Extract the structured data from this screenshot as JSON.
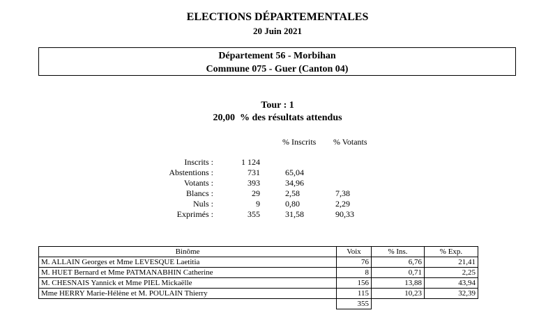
{
  "title": "ELECTIONS DÉPARTEMENTALES",
  "date": "20 Juin 2021",
  "departement": "Département 56 - Morbihan",
  "commune": "Commune 075 - Guer (Canton 04)",
  "tour": "Tour : 1",
  "progress": "20,00  % des résultats attendus",
  "stats": {
    "headers": [
      "% Inscrits",
      "% Votants"
    ],
    "rows": [
      {
        "label": "Inscrits :",
        "value": "1 124",
        "pct_inscrits": "",
        "pct_votants": ""
      },
      {
        "label": "Abstentions :",
        "value": "731",
        "pct_inscrits": "65,04",
        "pct_votants": ""
      },
      {
        "label": "Votants :",
        "value": "393",
        "pct_inscrits": "34,96",
        "pct_votants": ""
      },
      {
        "label": "Blancs :",
        "value": "29",
        "pct_inscrits": "2,58",
        "pct_votants": "7,38"
      },
      {
        "label": "Nuls :",
        "value": "9",
        "pct_inscrits": "0,80",
        "pct_votants": "2,29"
      },
      {
        "label": "Exprimés :",
        "value": "355",
        "pct_inscrits": "31,58",
        "pct_votants": "90,33"
      }
    ]
  },
  "results": {
    "headers": [
      "Binôme",
      "Voix",
      "% Ins.",
      "% Exp."
    ],
    "rows": [
      [
        "M. ALLAIN Georges et Mme LEVESQUE Laetitia",
        "76",
        "6,76",
        "21,41"
      ],
      [
        "M. HUET Bernard et Mme PATMANABHIN Catherine",
        "8",
        "0,71",
        "2,25"
      ],
      [
        "M. CHESNAIS Yannick et Mme PIEL Mickaëlle",
        "156",
        "13,88",
        "43,94"
      ],
      [
        "Mme HERRY Marie-Hélène et M. POULAIN Thierry",
        "115",
        "10,23",
        "32,39"
      ]
    ],
    "total_voix": "355"
  }
}
